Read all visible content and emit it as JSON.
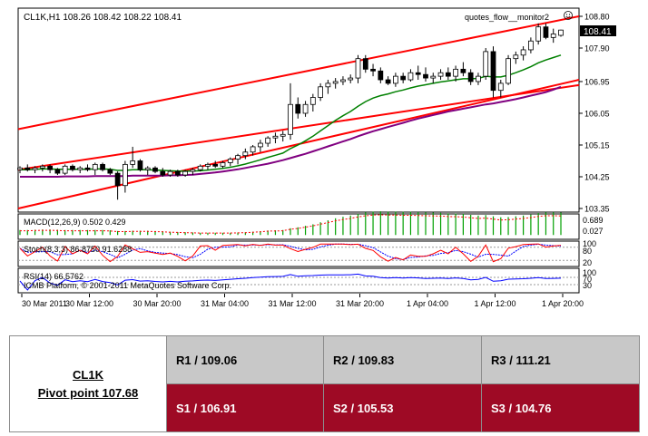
{
  "chart": {
    "header": "CL1K,H1  108.26 108.42 108.22 108.41",
    "indicator_tag": "quotes_flow__monitor2",
    "current_price": "108.41",
    "price_ticks": [
      "108.80",
      "107.90",
      "106.95",
      "106.05",
      "105.15",
      "104.25",
      "103.35"
    ],
    "macd_label": "MACD(12,26,9) 0.502 0.429",
    "macd_ticks": [
      "0.689",
      "0.027"
    ],
    "stoch_label": "Stoch(8,3,3) 86.8750 91.6288",
    "stoch_ticks": [
      "100",
      "80",
      "20"
    ],
    "rsi_label": "RSI(14) 66.5762",
    "rsi_ticks": [
      "100",
      "70",
      "30"
    ],
    "copyright": "ICMB Platform, © 2001-2011 MetaQuotes Software Corp.",
    "time_labels": [
      "30 Mar 2011",
      "30 Mar 12:00",
      "30 Mar 20:00",
      "31 Mar 04:00",
      "31 Mar 12:00",
      "31 Mar 20:00",
      "1 Apr 04:00",
      "1 Apr 12:00",
      "1 Apr 20:00"
    ],
    "colors": {
      "up_candle": "#ffffff",
      "down_candle": "#000000",
      "channel": "#ff0000",
      "ma_fast": "#008000",
      "ma_slow": "#800080",
      "macd_hist": "#00a000",
      "stoch_main": "#ff0000",
      "stoch_signal": "#0000ff",
      "rsi": "#0000ff"
    }
  },
  "chart_data": {
    "type": "candlestick",
    "symbol": "CL1K",
    "timeframe": "H1",
    "ylim": [
      103.35,
      108.8
    ],
    "ohlc": [
      [
        104.45,
        104.55,
        104.35,
        104.5
      ],
      [
        104.5,
        104.6,
        104.4,
        104.45
      ],
      [
        104.45,
        104.55,
        104.35,
        104.5
      ],
      [
        104.5,
        104.6,
        104.4,
        104.55
      ],
      [
        104.55,
        104.6,
        104.35,
        104.45
      ],
      [
        104.45,
        104.5,
        104.3,
        104.35
      ],
      [
        104.35,
        104.6,
        104.3,
        104.55
      ],
      [
        104.55,
        104.6,
        104.4,
        104.45
      ],
      [
        104.45,
        104.55,
        104.35,
        104.5
      ],
      [
        104.5,
        104.6,
        104.4,
        104.45
      ],
      [
        104.45,
        104.65,
        104.3,
        104.6
      ],
      [
        104.6,
        104.65,
        104.4,
        104.45
      ],
      [
        104.45,
        104.5,
        104.3,
        104.35
      ],
      [
        104.35,
        104.4,
        103.6,
        104.0
      ],
      [
        104.0,
        104.7,
        103.8,
        104.6
      ],
      [
        104.6,
        105.1,
        104.5,
        104.7
      ],
      [
        104.7,
        104.75,
        104.4,
        104.45
      ],
      [
        104.45,
        104.55,
        104.3,
        104.5
      ],
      [
        104.5,
        104.55,
        104.35,
        104.4
      ],
      [
        104.4,
        104.5,
        104.25,
        104.3
      ],
      [
        104.3,
        104.45,
        104.25,
        104.4
      ],
      [
        104.4,
        104.45,
        104.25,
        104.3
      ],
      [
        104.3,
        104.45,
        104.25,
        104.4
      ],
      [
        104.4,
        104.5,
        104.3,
        104.45
      ],
      [
        104.45,
        104.6,
        104.4,
        104.55
      ],
      [
        104.55,
        104.65,
        104.45,
        104.6
      ],
      [
        104.6,
        104.7,
        104.5,
        104.55
      ],
      [
        104.55,
        104.7,
        104.5,
        104.65
      ],
      [
        104.65,
        104.8,
        104.55,
        104.75
      ],
      [
        104.75,
        104.9,
        104.6,
        104.85
      ],
      [
        104.85,
        105.05,
        104.75,
        104.95
      ],
      [
        104.95,
        105.15,
        104.85,
        105.1
      ],
      [
        105.1,
        105.3,
        104.95,
        105.2
      ],
      [
        105.2,
        105.4,
        105.1,
        105.35
      ],
      [
        105.35,
        105.5,
        105.2,
        105.4
      ],
      [
        105.4,
        105.55,
        105.25,
        105.45
      ],
      [
        105.45,
        106.9,
        105.3,
        106.3
      ],
      [
        106.3,
        106.5,
        105.9,
        106.05
      ],
      [
        106.05,
        106.4,
        105.95,
        106.3
      ],
      [
        106.3,
        106.6,
        106.1,
        106.5
      ],
      [
        106.5,
        106.9,
        106.4,
        106.8
      ],
      [
        106.8,
        107.0,
        106.6,
        106.9
      ],
      [
        106.9,
        107.05,
        106.75,
        106.95
      ],
      [
        106.95,
        107.1,
        106.85,
        107.0
      ],
      [
        107.0,
        107.15,
        106.9,
        107.05
      ],
      [
        107.05,
        107.7,
        106.9,
        107.6
      ],
      [
        107.6,
        107.7,
        107.2,
        107.3
      ],
      [
        107.3,
        107.45,
        107.1,
        107.25
      ],
      [
        107.25,
        107.35,
        106.9,
        107.0
      ],
      [
        107.0,
        107.1,
        106.85,
        106.9
      ],
      [
        106.9,
        107.2,
        106.8,
        107.1
      ],
      [
        107.1,
        107.2,
        106.9,
        107.0
      ],
      [
        107.0,
        107.3,
        106.95,
        107.2
      ],
      [
        107.2,
        107.4,
        107.0,
        107.15
      ],
      [
        107.15,
        107.35,
        106.95,
        107.05
      ],
      [
        107.05,
        107.2,
        106.9,
        107.1
      ],
      [
        107.1,
        107.3,
        107.0,
        107.2
      ],
      [
        107.2,
        107.35,
        107.0,
        107.1
      ],
      [
        107.1,
        107.4,
        106.95,
        107.3
      ],
      [
        107.3,
        107.5,
        107.1,
        107.2
      ],
      [
        107.2,
        107.3,
        106.85,
        106.95
      ],
      [
        106.95,
        107.2,
        106.85,
        107.1
      ],
      [
        107.1,
        107.9,
        107.0,
        107.8
      ],
      [
        107.8,
        107.95,
        106.5,
        106.7
      ],
      [
        106.7,
        107.0,
        106.5,
        106.9
      ],
      [
        106.9,
        107.7,
        106.85,
        107.6
      ],
      [
        107.6,
        107.8,
        107.45,
        107.7
      ],
      [
        107.7,
        107.95,
        107.55,
        107.85
      ],
      [
        107.85,
        108.2,
        107.75,
        108.1
      ],
      [
        108.1,
        108.6,
        108.0,
        108.5
      ],
      [
        108.5,
        108.6,
        108.15,
        108.2
      ],
      [
        108.2,
        108.45,
        108.05,
        108.3
      ],
      [
        108.26,
        108.42,
        108.22,
        108.41
      ]
    ],
    "ma_fast": [
      104.45,
      104.45,
      104.46,
      104.47,
      104.47,
      104.46,
      104.46,
      104.46,
      104.46,
      104.46,
      104.47,
      104.47,
      104.46,
      104.43,
      104.43,
      104.45,
      104.45,
      104.45,
      104.44,
      104.43,
      104.42,
      104.41,
      104.41,
      104.41,
      104.42,
      104.44,
      104.46,
      104.49,
      104.52,
      104.56,
      104.61,
      104.67,
      104.73,
      104.8,
      104.86,
      104.92,
      105.05,
      105.15,
      105.27,
      105.4,
      105.55,
      105.7,
      105.85,
      105.98,
      106.1,
      106.25,
      106.38,
      106.48,
      106.55,
      106.6,
      106.66,
      106.71,
      106.77,
      106.82,
      106.86,
      106.9,
      106.94,
      106.97,
      107.0,
      107.03,
      107.03,
      107.04,
      107.1,
      107.08,
      107.08,
      107.13,
      107.2,
      107.28,
      107.37,
      107.48,
      107.56,
      107.63,
      107.7
    ],
    "ma_slow": [
      104.25,
      104.25,
      104.25,
      104.25,
      104.25,
      104.25,
      104.26,
      104.26,
      104.26,
      104.26,
      104.27,
      104.27,
      104.27,
      104.27,
      104.27,
      104.28,
      104.28,
      104.28,
      104.28,
      104.28,
      104.29,
      104.29,
      104.3,
      104.31,
      104.33,
      104.35,
      104.37,
      104.4,
      104.43,
      104.46,
      104.5,
      104.54,
      104.58,
      104.62,
      104.67,
      104.72,
      104.78,
      104.84,
      104.9,
      104.97,
      105.04,
      105.11,
      105.18,
      105.25,
      105.32,
      105.4,
      105.47,
      105.54,
      105.6,
      105.66,
      105.72,
      105.78,
      105.84,
      105.9,
      105.95,
      106.0,
      106.05,
      106.1,
      106.14,
      106.18,
      106.22,
      106.26,
      106.3,
      106.33,
      106.37,
      106.41,
      106.45,
      106.5,
      106.55,
      106.6,
      106.65,
      106.72,
      106.8
    ],
    "channel_upper": {
      "start": 105.6,
      "end": 108.8
    },
    "channel_lower": {
      "start": 103.35,
      "end": 107.0
    },
    "channel_mid": {
      "start": 104.45,
      "end": 106.85
    },
    "macd_hist_range": [
      -0.1,
      0.7
    ],
    "stoch_levels": [
      80,
      20
    ],
    "rsi_levels": [
      70,
      30
    ]
  },
  "pivot": {
    "symbol": "CL1K",
    "pivot_label": "Pivot point 107.68",
    "resistance": [
      "R1 / 109.06",
      "R2  / 109.83",
      "R3 / 111.21"
    ],
    "support": [
      "S1 / 106.91",
      "S2 /  105.53",
      "S3 /  104.76"
    ]
  }
}
